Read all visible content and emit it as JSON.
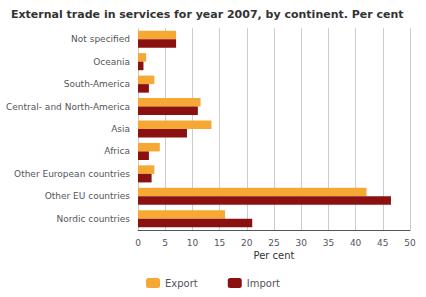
{
  "chart_data": {
    "type": "bar",
    "orientation": "horizontal",
    "title": "External trade in services for year 2007, by continent. Per cent",
    "categories": [
      "Nordic countries",
      "Other EU countries",
      "Other European countries",
      "Africa",
      "Asia",
      "Central- and North-America",
      "South-America",
      "Oceania",
      "Not specified"
    ],
    "series": [
      {
        "name": "Export",
        "color": "#F5A833",
        "values": [
          16.0,
          42.0,
          3.0,
          4.0,
          13.5,
          11.5,
          3.0,
          1.5,
          7.0
        ]
      },
      {
        "name": "Import",
        "color": "#8B1010",
        "values": [
          21.0,
          46.5,
          2.5,
          2.0,
          9.0,
          11.0,
          2.0,
          1.0,
          7.0
        ]
      }
    ],
    "xlabel": "Per cent",
    "xlim": [
      0,
      50
    ],
    "xticks": [
      0,
      5,
      10,
      15,
      20,
      25,
      30,
      35,
      40,
      45,
      50
    ],
    "grid": true,
    "legend": "bottom"
  }
}
